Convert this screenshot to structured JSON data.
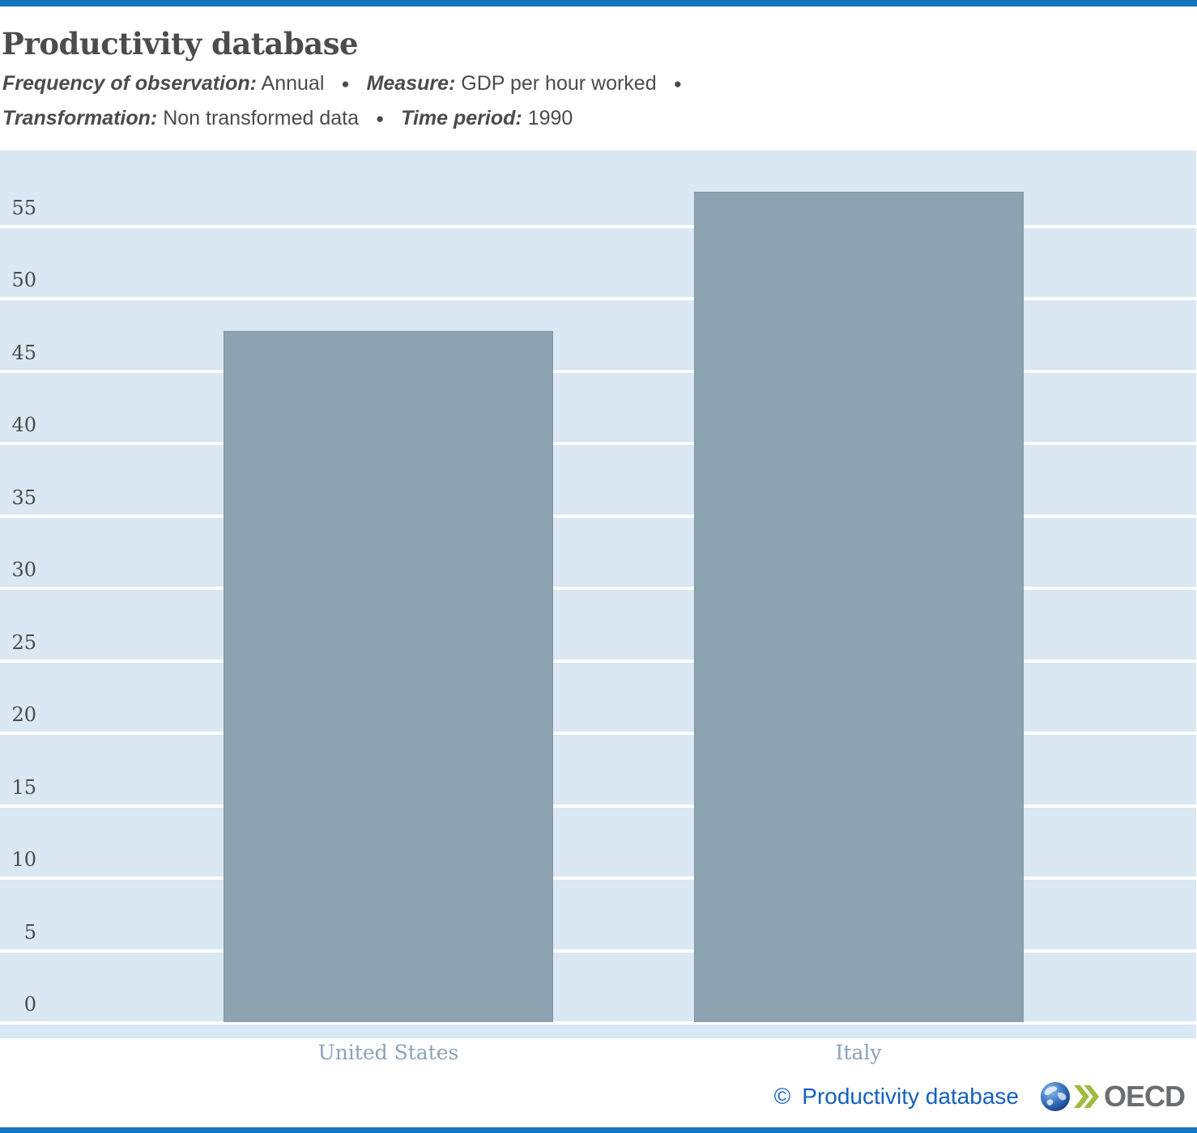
{
  "header": {
    "title": "Productivity database",
    "meta_lines": [
      {
        "segments": [
          {
            "label": "Frequency of observation:",
            "value": "Annual"
          },
          {
            "label": "Measure:",
            "value": "GDP per hour worked"
          }
        ],
        "trailing_bullet": true
      },
      {
        "segments": [
          {
            "label": "Transformation:",
            "value": "Non transformed data"
          },
          {
            "label": "Time period:",
            "value": "1990"
          }
        ],
        "trailing_bullet": false
      }
    ]
  },
  "chart_data": {
    "type": "bar",
    "categories": [
      "United States",
      "Italy"
    ],
    "values": [
      47.7,
      57.3
    ],
    "title": "Productivity database",
    "xlabel": "",
    "ylabel": "",
    "measure": "GDP per hour worked",
    "frequency": "Annual",
    "transformation": "Non transformed data",
    "time_period": "1990",
    "ylim": [
      0,
      60.3
    ],
    "yticks": [
      0,
      5,
      10,
      15,
      20,
      25,
      30,
      35,
      40,
      45,
      50,
      55
    ],
    "grid": true,
    "legend": "none",
    "bar_color": "#8da3b2",
    "plot_bg": "#d9e8f2",
    "gridline_color": "#ffffff"
  },
  "footer": {
    "copyright_symbol": "©",
    "copyright_text": "Productivity database",
    "oecd_label": "OECD"
  },
  "ui": {
    "bullet": "●",
    "accent_color": "#1377be",
    "title_color": "#4c4c4c",
    "tick_color": "#4a4a4a",
    "x_label_color": "#8aa3b8",
    "credit_color": "#1560c0"
  }
}
